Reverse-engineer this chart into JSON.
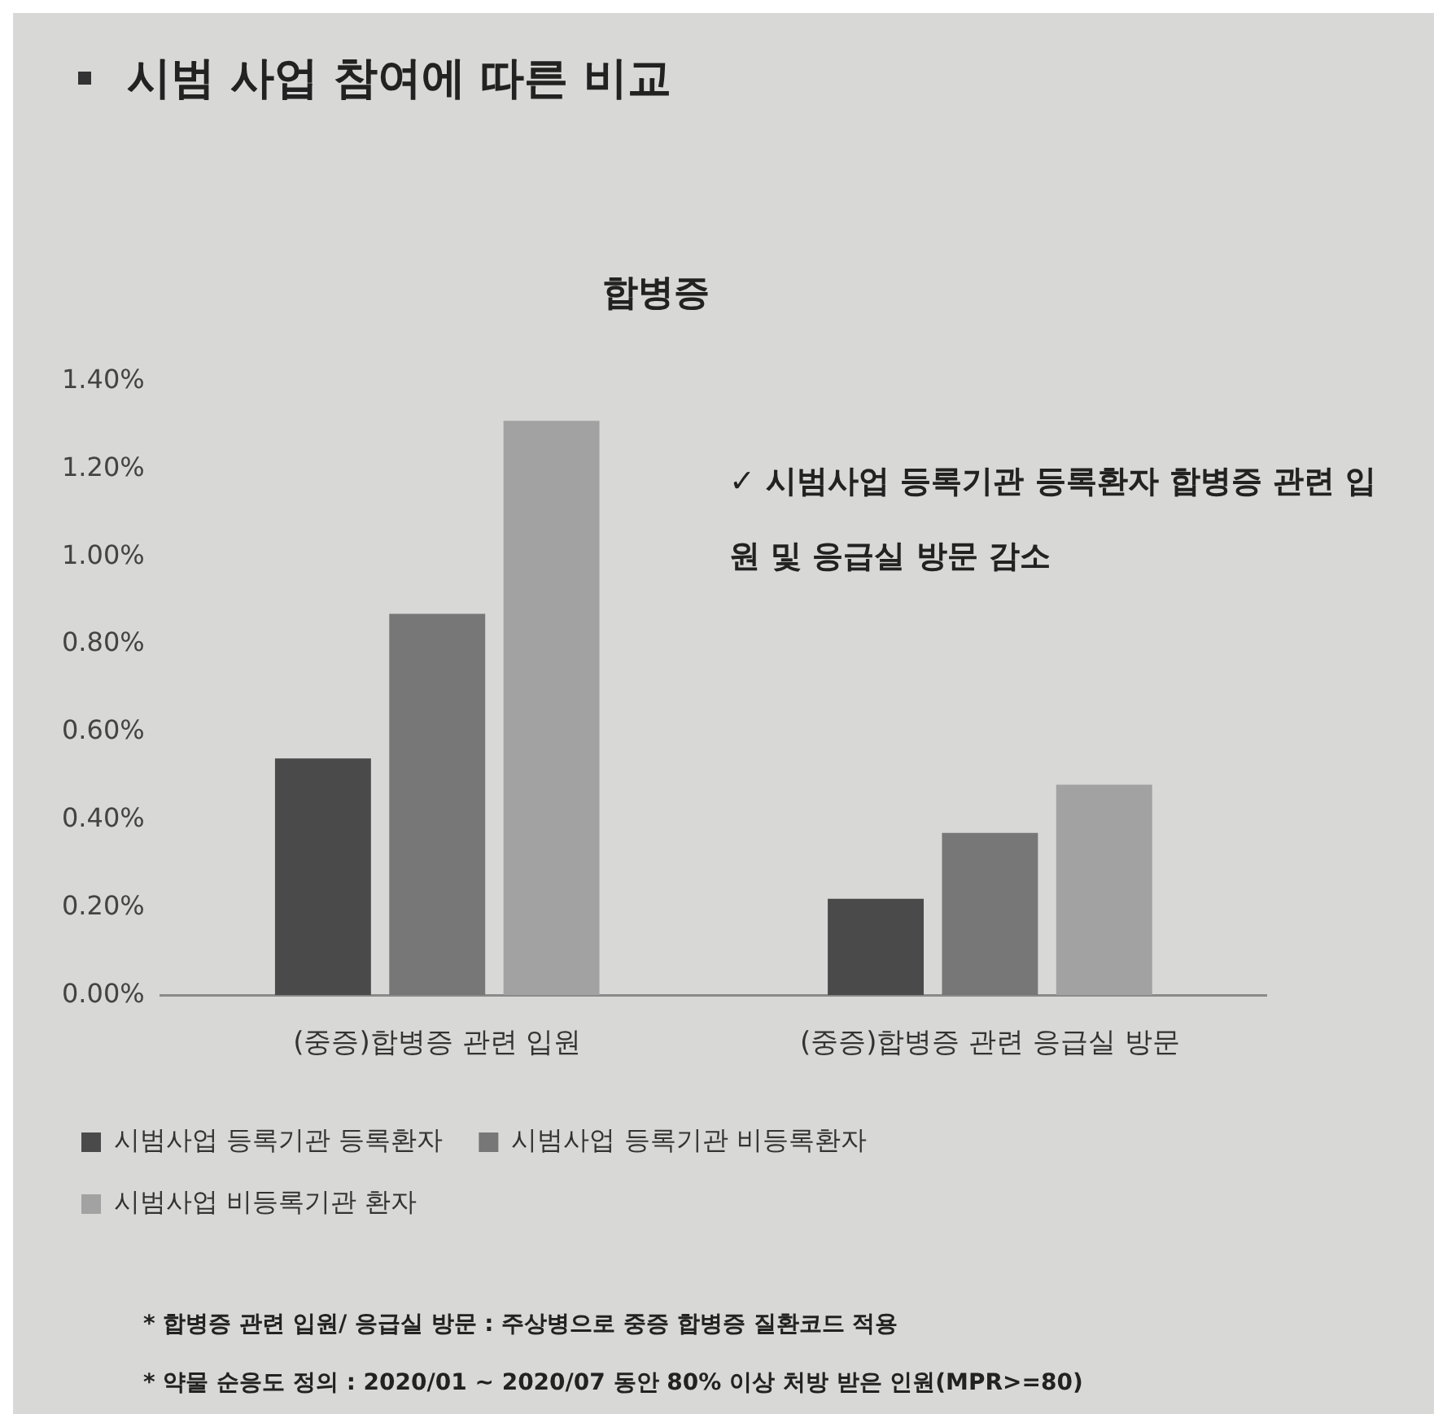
{
  "chart_data": {
    "type": "bar",
    "title": "시범 사업 참여에 따른 비교",
    "subtitle": "합병증",
    "categories": [
      "(중증)합병증 관련 입원",
      "(중증)합병증 관련 응급실 방문"
    ],
    "series": [
      {
        "name": "시범사업 등록기관 등록환자",
        "color": "#4a4a4a",
        "values": [
          0.54,
          0.22
        ]
      },
      {
        "name": "시범사업 등록기관 비등록환자",
        "color": "#777777",
        "values": [
          0.87,
          0.37
        ]
      },
      {
        "name": "시범사업 비등록기관 환자",
        "color": "#a2a2a2",
        "values": [
          1.31,
          0.48
        ]
      }
    ],
    "ylim": [
      0,
      1.4
    ],
    "yticks": [
      {
        "value": 0,
        "label": "0.00%"
      },
      {
        "value": 0.2,
        "label": "0.20%"
      },
      {
        "value": 0.4,
        "label": "0.40%"
      },
      {
        "value": 0.6,
        "label": "0.60%"
      },
      {
        "value": 0.8,
        "label": "0.80%"
      },
      {
        "value": 1,
        "label": "1.00%"
      },
      {
        "value": 1.2,
        "label": "1.20%"
      },
      {
        "value": 1.4,
        "label": "1.40%"
      }
    ],
    "grid": false,
    "legend": "bottom",
    "annotations": [
      "✓ 시범사업 등록기관 등록환자 합병증 관련 입원 및 응급실 방문 감소",
      "* 합병증 관련 입원/ 응급실 방문 : 주상병으로 중증 합병증 질환코드 적용",
      "* 약물 순응도 정의 : 2020/01 ~ 2020/07 동안 80% 이상 처방 받은 인원(MPR>=80)"
    ]
  }
}
